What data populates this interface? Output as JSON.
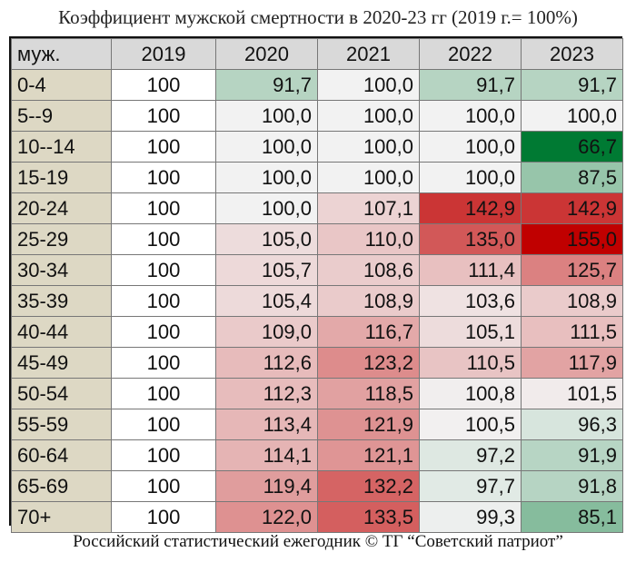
{
  "title": "Коэффициент мужской смертности в 2020-23 гг (2019 г.= 100%)",
  "footer": "Российский статистический ежегодник © ТГ “Советский патриот”",
  "chart_data": {
    "type": "table",
    "title": "Коэффициент мужской смертности в 2020-23 гг (2019 г.= 100%)",
    "corner_label": "муж.",
    "columns": [
      "2019",
      "2020",
      "2021",
      "2022",
      "2023"
    ],
    "rows": [
      {
        "label": "0-4",
        "base": "100",
        "values": [
          "91,7",
          "100,0",
          "91,7",
          "91,7"
        ]
      },
      {
        "label": "5--9",
        "base": "100",
        "values": [
          "100,0",
          "100,0",
          "100,0",
          "100,0"
        ]
      },
      {
        "label": "10--14",
        "base": "100",
        "values": [
          "100,0",
          "100,0",
          "100,0",
          "66,7"
        ]
      },
      {
        "label": "15-19",
        "base": "100",
        "values": [
          "100,0",
          "100,0",
          "100,0",
          "87,5"
        ]
      },
      {
        "label": "20-24",
        "base": "100",
        "values": [
          "100,0",
          "107,1",
          "142,9",
          "142,9"
        ]
      },
      {
        "label": "25-29",
        "base": "100",
        "values": [
          "105,0",
          "110,0",
          "135,0",
          "155,0"
        ]
      },
      {
        "label": "30-34",
        "base": "100",
        "values": [
          "105,7",
          "108,6",
          "111,4",
          "125,7"
        ]
      },
      {
        "label": "35-39",
        "base": "100",
        "values": [
          "105,4",
          "108,9",
          "103,6",
          "108,9"
        ]
      },
      {
        "label": "40-44",
        "base": "100",
        "values": [
          "109,0",
          "116,7",
          "105,1",
          "111,5"
        ]
      },
      {
        "label": "45-49",
        "base": "100",
        "values": [
          "112,6",
          "123,2",
          "110,5",
          "117,9"
        ]
      },
      {
        "label": "50-54",
        "base": "100",
        "values": [
          "112,3",
          "118,5",
          "100,8",
          "101,5"
        ]
      },
      {
        "label": "55-59",
        "base": "100",
        "values": [
          "113,4",
          "121,9",
          "100,5",
          "96,3"
        ]
      },
      {
        "label": "60-64",
        "base": "100",
        "values": [
          "114,1",
          "121,1",
          "97,2",
          "91,9"
        ]
      },
      {
        "label": "65-69",
        "base": "100",
        "values": [
          "119,4",
          "132,2",
          "97,7",
          "91,8"
        ]
      },
      {
        "label": "70+",
        "base": "100",
        "values": [
          "122,0",
          "133,5",
          "99,3",
          "85,1"
        ]
      }
    ],
    "color_scale": {
      "low_color": "#007a33",
      "mid_color": "#f2f2f2",
      "high_color": "#c00000",
      "low_value": 66.7,
      "mid_value": 100,
      "high_value": 155
    }
  }
}
